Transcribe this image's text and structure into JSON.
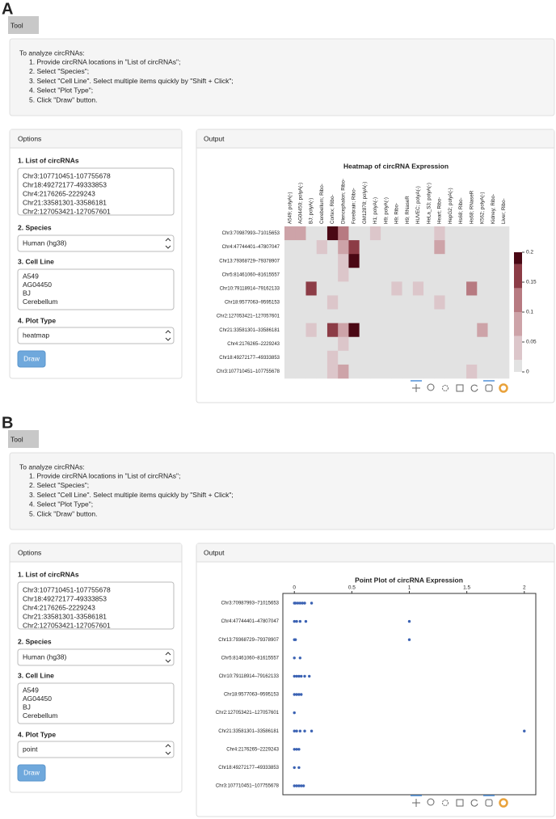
{
  "panels": [
    {
      "label": "A",
      "title": "Tool",
      "instructions": {
        "intro": "To analyze circRNAs:",
        "steps": [
          "1. Provide circRNA locations in \"List of circRNAs\";",
          "2. Select \"Species\";",
          "3. Select \"Cell Line\". Select multiple items quickly by \"Shift + Click\";",
          "4. Select \"Plot Type\";",
          "5. Click \"Draw\" button."
        ]
      },
      "options": {
        "header": "Options",
        "list_label": "1. List of circRNAs",
        "circrnas": [
          "Chr3:107710451-107755678",
          "Chr18:49272177-49333853",
          "Chr4:2176265-2229243",
          "Chr21:33581301-33586181",
          "Chr2:127053421-127057601"
        ],
        "species_label": "2. Species",
        "species": "Human (hg38)",
        "cell_label": "3. Cell Line",
        "cell_lines": [
          "A549",
          "AG04450",
          "BJ",
          "Cerebellum"
        ],
        "plot_label": "4. Plot Type",
        "plot_type": "heatmap",
        "button": "Draw"
      },
      "output": {
        "header": "Output"
      }
    },
    {
      "label": "B",
      "title": "Tool",
      "instructions": {
        "intro": "To analyze circRNAs:",
        "steps": [
          "1. Provide circRNA locations in \"List of circRNAs\";",
          "2. Select \"Species\";",
          "3. Select \"Cell Line\". Select multiple items quickly by \"Shift + Click\";",
          "4. Select \"Plot Type\";",
          "5. Click \"Draw\" button."
        ]
      },
      "options": {
        "header": "Options",
        "list_label": "1. List of circRNAs",
        "circrnas": [
          "Chr3:107710451-107755678",
          "Chr18:49272177-49333853",
          "Chr4:2176265-2229243",
          "Chr21:33581301-33586181",
          "Chr2:127053421-127057601"
        ],
        "species_label": "2. Species",
        "species": "Human (hg38)",
        "cell_label": "3. Cell Line",
        "cell_lines": [
          "A549",
          "AG04450",
          "BJ",
          "Cerebellum"
        ],
        "plot_label": "4. Plot Type",
        "plot_type": "point",
        "button": "Draw"
      },
      "output": {
        "header": "Output"
      }
    }
  ],
  "chart_data": [
    {
      "type": "heatmap",
      "title": "Heatmap of circRNA Expression",
      "columns": [
        "A549; polyA(-)",
        "AG04450; polyA(-)",
        "BJ; polyA(-)",
        "Cerebellum; Ribo-",
        "Cortex; Ribo-",
        "Diencephalon; Ribo-",
        "Forebrain; Ribo-",
        "GM12878; polyA(-)",
        "H1; polyA(-)",
        "H9; polyA(-)",
        "H9; Ribo-",
        "H9; RNaseR",
        "HUVEC; polyA(-)",
        "HeLa_S3; polyA(-)",
        "Heart; Ribo-",
        "HepG2; polyA(-)",
        "Hs68; Ribo-",
        "Hs68; RNaseR",
        "K562; polyA(-)",
        "Kidney; Ribo-",
        "Liver; Ribo-"
      ],
      "rows": [
        "Chr3:70987993–71015653",
        "Chr4:47744401–47807047",
        "Chr13:79368729–79378907",
        "Chr5:81461060–81615557",
        "Chr10:79118914–79162133",
        "Chr18:9577063–9595153",
        "Chr2:127053421–127057601",
        "Chr21:33581301–33586181",
        "Chr4:2176265–2229243",
        "Chr18:49272177–49333853",
        "Chr3:107710451–107755678"
      ],
      "values": [
        [
          0.07,
          0.07,
          0,
          0,
          0.18,
          0.1,
          0,
          0,
          0.05,
          0,
          0,
          0,
          0,
          0,
          0.05,
          0,
          0,
          0,
          0,
          0,
          0
        ],
        [
          0,
          0,
          0,
          0.04,
          0,
          0.08,
          0.17,
          0,
          0,
          0,
          0,
          0,
          0,
          0,
          0.08,
          0,
          0,
          0,
          0,
          0,
          0
        ],
        [
          0,
          0,
          0,
          0,
          0,
          0.03,
          0.2,
          0,
          0,
          0,
          0,
          0,
          0,
          0,
          0,
          0,
          0,
          0,
          0,
          0,
          0
        ],
        [
          0,
          0,
          0,
          0,
          0,
          0.03,
          0,
          0,
          0,
          0,
          0,
          0,
          0,
          0,
          0,
          0,
          0,
          0,
          0,
          0,
          0
        ],
        [
          0,
          0,
          0.17,
          0,
          0,
          0,
          0,
          0,
          0,
          0,
          0.04,
          0,
          0.04,
          0,
          0,
          0,
          0,
          0.12,
          0,
          0,
          0
        ],
        [
          0,
          0,
          0,
          0,
          0.03,
          0,
          0,
          0,
          0,
          0,
          0,
          0,
          0,
          0,
          0.04,
          0,
          0,
          0,
          0,
          0,
          0
        ],
        [
          0,
          0,
          0,
          0,
          0,
          0,
          0,
          0,
          0,
          0,
          0,
          0,
          0,
          0,
          0,
          0,
          0,
          0,
          0,
          0,
          0
        ],
        [
          0,
          0,
          0.04,
          0,
          0.16,
          0.07,
          0.2,
          0,
          0,
          0,
          0,
          0,
          0,
          0,
          0,
          0,
          0,
          0,
          0.06,
          0,
          0
        ],
        [
          0,
          0,
          0,
          0,
          0,
          0.03,
          0,
          0,
          0,
          0,
          0,
          0,
          0,
          0,
          0,
          0,
          0,
          0,
          0,
          0,
          0
        ],
        [
          0,
          0,
          0,
          0,
          0.03,
          0,
          0,
          0,
          0,
          0,
          0,
          0,
          0,
          0,
          0,
          0,
          0,
          0,
          0,
          0,
          0
        ],
        [
          0,
          0,
          0,
          0,
          0.03,
          0.06,
          0,
          0,
          0,
          0,
          0,
          0,
          0,
          0,
          0,
          0,
          0,
          0.05,
          0,
          0,
          0
        ]
      ],
      "colors": [
        "#e2e2e2",
        "#dcc6ca",
        "#cda3a8",
        "#b77a81",
        "#8c3c46",
        "#4a0814"
      ],
      "zlim": [
        0,
        0.2
      ],
      "zticks": [
        0,
        0.05,
        0.1,
        0.15,
        0.2
      ]
    },
    {
      "type": "point",
      "title": "Point Plot of circRNA Expression",
      "categories": [
        "Chr3:70987993–71015653",
        "Chr4:47744401–47807047",
        "Chr13:79368729–79378907",
        "Chr5:81461060–81615557",
        "Chr10:79118914–79162133",
        "Chr18:9577063–9595153",
        "Chr2:127053421–127057601",
        "Chr21:33581301–33586181",
        "Chr4:2176265–2229243",
        "Chr18:49272177–49333853",
        "Chr3:107710451–107755678"
      ],
      "values": [
        [
          0,
          0.01,
          0.03,
          0.05,
          0.07,
          0.09,
          0.15
        ],
        [
          0,
          0.02,
          0.05,
          0.1,
          1
        ],
        [
          0,
          0.01,
          1
        ],
        [
          0,
          0.05
        ],
        [
          0,
          0.02,
          0.04,
          0.06,
          0.09,
          0.13
        ],
        [
          0,
          0.02,
          0.04,
          0.06
        ],
        [
          0
        ],
        [
          0,
          0.02,
          0.05,
          0.09,
          0.15,
          2
        ],
        [
          0,
          0.02,
          0.04
        ],
        [
          0,
          0.04
        ],
        [
          0,
          0.02,
          0.04,
          0.06,
          0.08
        ]
      ],
      "color": "#3b62b3",
      "xlim": [
        -0.1,
        2.1
      ],
      "xticks": [
        0,
        0.5,
        1,
        1.5,
        2
      ]
    }
  ]
}
